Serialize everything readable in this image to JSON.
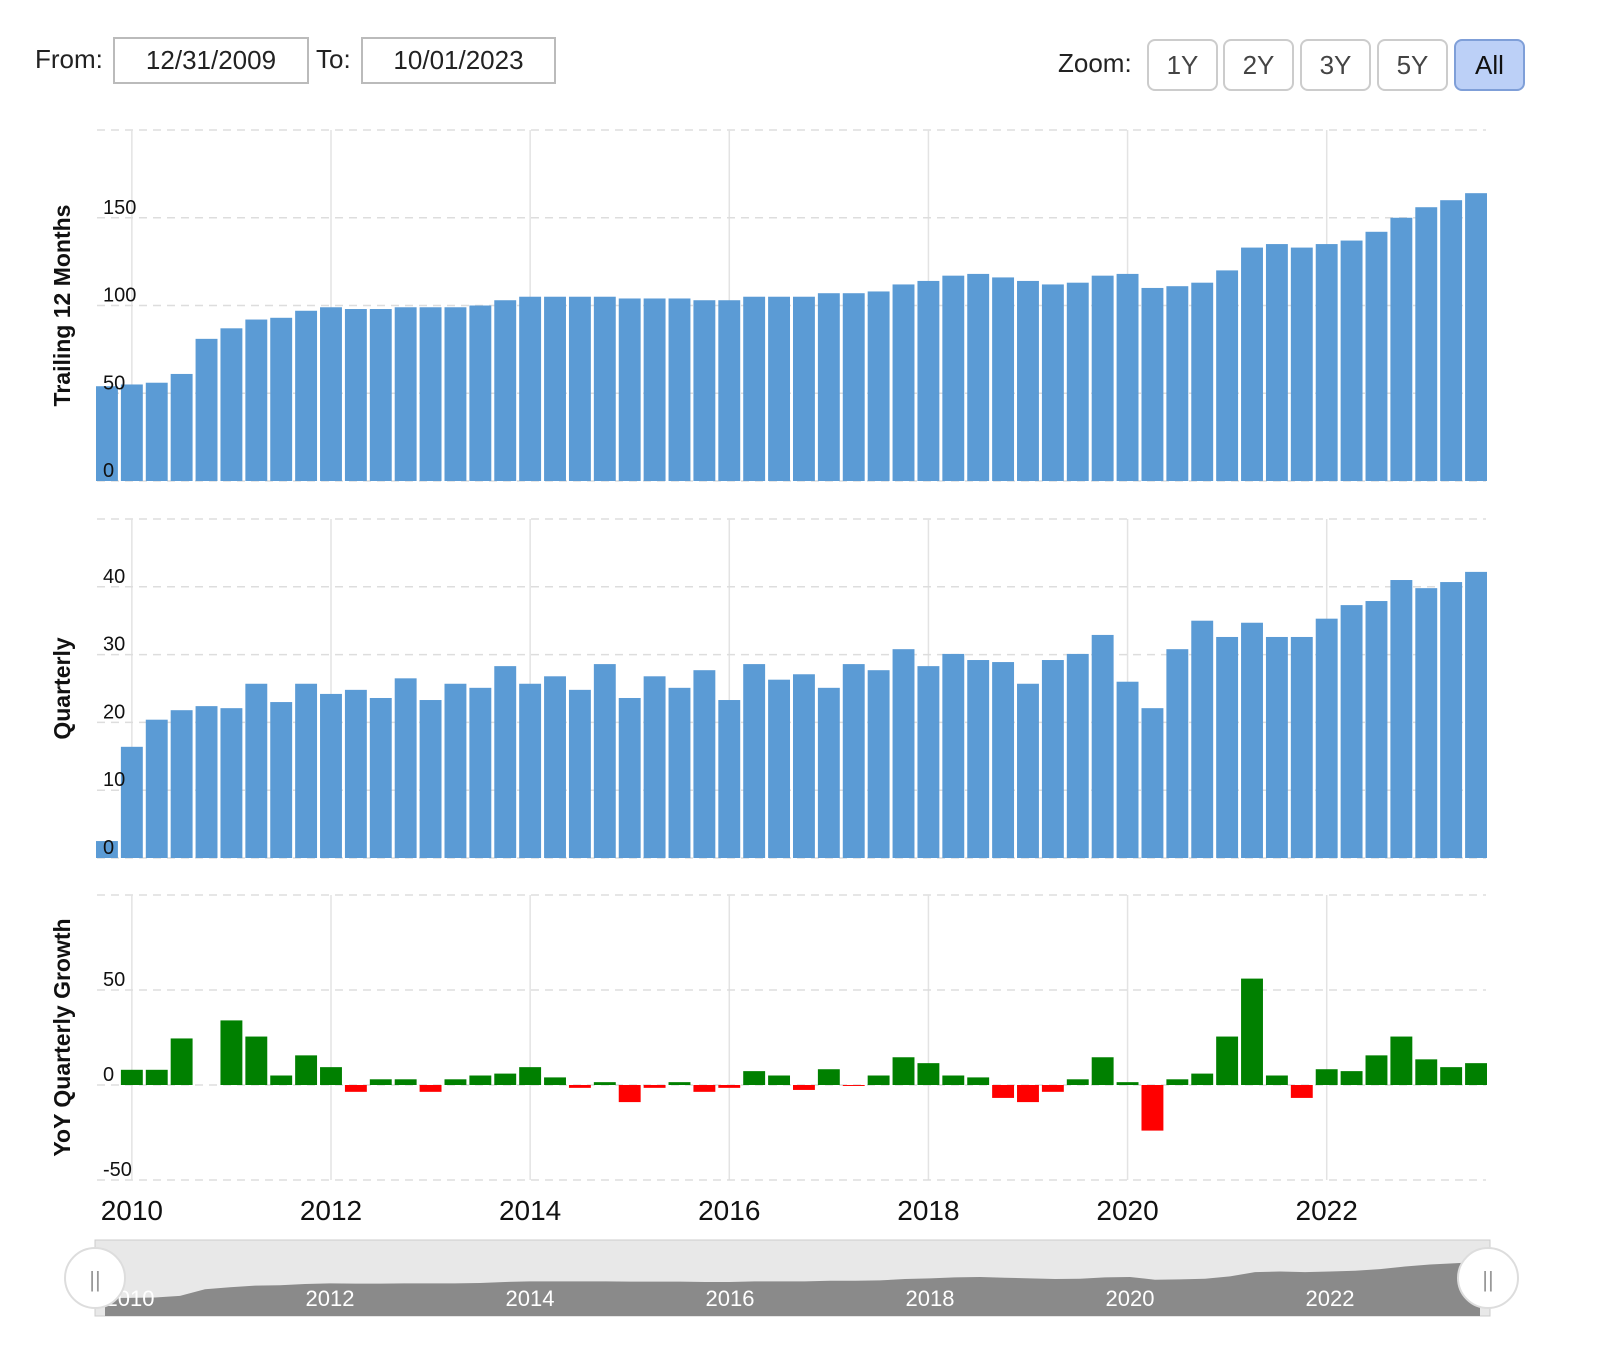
{
  "controls": {
    "from_label": "From:",
    "from": "12/31/2009",
    "to_label": "To:",
    "to": "10/01/2023",
    "zoom_label": "Zoom:",
    "zoom": [
      "1Y",
      "2Y",
      "3Y",
      "5Y",
      "All"
    ],
    "zoom_active": 4
  },
  "chart_data": [
    {
      "type": "bar",
      "ylabel": "Trailing 12 Months",
      "color": "#5b9bd5",
      "x": [
        2009.75,
        2010,
        2010.25,
        2010.5,
        2010.75,
        2011,
        2011.25,
        2011.5,
        2011.75,
        2012,
        2012.25,
        2012.5,
        2012.75,
        2013,
        2013.25,
        2013.5,
        2013.75,
        2014,
        2014.25,
        2014.5,
        2014.75,
        2015,
        2015.25,
        2015.5,
        2015.75,
        2016,
        2016.25,
        2016.5,
        2016.75,
        2017,
        2017.25,
        2017.5,
        2017.75,
        2018,
        2018.25,
        2018.5,
        2018.75,
        2019,
        2019.25,
        2019.5,
        2019.75,
        2020,
        2020.25,
        2020.5,
        2020.75,
        2021,
        2021.25,
        2021.5,
        2021.75,
        2022,
        2022.25,
        2022.5,
        2022.75,
        2023,
        2023.25,
        2023.5
      ],
      "values": [
        54,
        55,
        56,
        61,
        81,
        87,
        92,
        93,
        97,
        99,
        98,
        98,
        99,
        99,
        99,
        100,
        103,
        105,
        105,
        105,
        105,
        104,
        104,
        104,
        103,
        103,
        105,
        105,
        105,
        107,
        107,
        108,
        112,
        114,
        117,
        118,
        116,
        114,
        112,
        113,
        117,
        118,
        110,
        111,
        113,
        120,
        133,
        135,
        133,
        135,
        137,
        142,
        150,
        156,
        160,
        164
      ],
      "xlim": [
        2009.65,
        2023.6
      ],
      "xticks": [
        2010,
        2012,
        2014,
        2016,
        2018,
        2020,
        2022
      ],
      "ylim": [
        0,
        200
      ],
      "yticks": [
        0,
        50,
        100,
        150
      ]
    },
    {
      "type": "bar",
      "ylabel": "Quarterly",
      "color": "#5b9bd5",
      "x": [
        2009.75,
        2010,
        2010.25,
        2010.5,
        2010.75,
        2011,
        2011.25,
        2011.5,
        2011.75,
        2012,
        2012.25,
        2012.5,
        2012.75,
        2013,
        2013.25,
        2013.5,
        2013.75,
        2014,
        2014.25,
        2014.5,
        2014.75,
        2015,
        2015.25,
        2015.5,
        2015.75,
        2016,
        2016.25,
        2016.5,
        2016.75,
        2017,
        2017.25,
        2017.5,
        2017.75,
        2018,
        2018.25,
        2018.5,
        2018.75,
        2019,
        2019.25,
        2019.5,
        2019.75,
        2020,
        2020.25,
        2020.5,
        2020.75,
        2021,
        2021.25,
        2021.5,
        2021.75,
        2022,
        2022.25,
        2022.5,
        2022.75,
        2023,
        2023.25,
        2023.5
      ],
      "values": [
        2.5,
        16.4,
        20.4,
        21.8,
        22.4,
        22.1,
        25.7,
        23,
        25.7,
        24.2,
        24.8,
        23.6,
        26.5,
        23.3,
        25.7,
        25.1,
        28.3,
        25.7,
        26.8,
        24.8,
        28.6,
        23.6,
        26.8,
        25.1,
        27.7,
        23.3,
        28.6,
        26.3,
        27.1,
        25.1,
        28.6,
        27.7,
        30.8,
        28.3,
        30.1,
        29.2,
        28.9,
        25.7,
        29.2,
        30.1,
        32.9,
        26,
        22.1,
        30.8,
        35,
        32.6,
        34.7,
        32.6,
        32.6,
        35.3,
        37.3,
        37.9,
        41,
        39.8,
        40.7,
        42.2
      ],
      "xlim": [
        2009.65,
        2023.6
      ],
      "xticks": [
        2010,
        2012,
        2014,
        2016,
        2018,
        2020,
        2022
      ],
      "ylim": [
        0,
        50
      ],
      "yticks": [
        0,
        10,
        20,
        30,
        40
      ]
    },
    {
      "type": "bar",
      "ylabel": "YoY Quarterly Growth",
      "color": "#008000",
      "negative_color": "#ff0000",
      "x": [
        2009.75,
        2010,
        2010.25,
        2010.5,
        2010.75,
        2011,
        2011.25,
        2011.5,
        2011.75,
        2012,
        2012.25,
        2012.5,
        2012.75,
        2013,
        2013.25,
        2013.5,
        2013.75,
        2014,
        2014.25,
        2014.5,
        2014.75,
        2015,
        2015.25,
        2015.5,
        2015.75,
        2016,
        2016.25,
        2016.5,
        2016.75,
        2017,
        2017.25,
        2017.5,
        2017.75,
        2018,
        2018.25,
        2018.5,
        2018.75,
        2019,
        2019.25,
        2019.5,
        2019.75,
        2020,
        2020.25,
        2020.5,
        2020.75,
        2021,
        2021.25,
        2021.5,
        2021.75,
        2022,
        2022.25,
        2022.5,
        2022.75,
        2023,
        2023.25,
        2023.5
      ],
      "values": [
        null,
        8,
        8,
        24.5,
        null,
        34,
        25.5,
        5,
        15.6,
        9.4,
        -3.6,
        3,
        3,
        -3.6,
        3,
        5,
        6,
        9.4,
        4,
        -1.5,
        1.5,
        -9,
        -1.5,
        1.5,
        -3.6,
        -1.5,
        7.3,
        5,
        -2.6,
        8.3,
        -0.5,
        5,
        14.6,
        11.5,
        5,
        4,
        -6.8,
        -9,
        -3.6,
        3,
        14.6,
        1.5,
        -24,
        3,
        6,
        25.5,
        56,
        5,
        -6.8,
        8.3,
        7.3,
        15.6,
        25.5,
        13.5,
        9.4,
        11.5
      ],
      "xlim": [
        2009.65,
        2023.6
      ],
      "xticks": [
        2010,
        2012,
        2014,
        2016,
        2018,
        2020,
        2022
      ],
      "ylim": [
        -50,
        100
      ],
      "yticks": [
        -50,
        0,
        50
      ]
    }
  ]
}
